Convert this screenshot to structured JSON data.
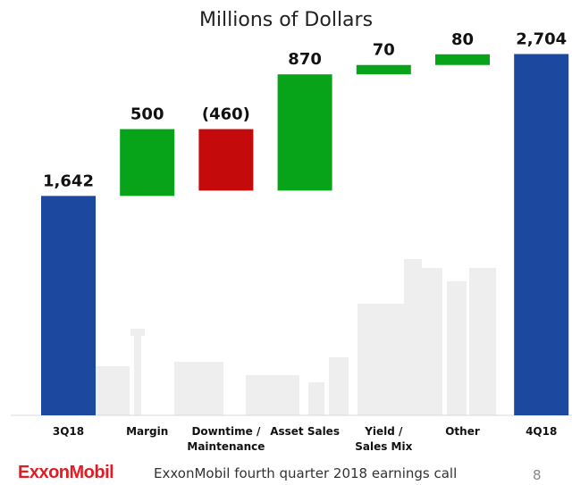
{
  "chart_data": {
    "type": "bar",
    "subtype": "waterfall",
    "title": "Millions of Dollars",
    "categories": [
      "3Q18",
      "Margin",
      "Downtime / Maintenance",
      "Asset Sales",
      "Yield / Sales Mix",
      "Other",
      "4Q18"
    ],
    "category_lines": [
      [
        "3Q18"
      ],
      [
        "Margin"
      ],
      [
        "Downtime /",
        "Maintenance"
      ],
      [
        "Asset Sales"
      ],
      [
        "Yield /",
        "Sales Mix"
      ],
      [
        "Other"
      ],
      [
        "4Q18"
      ]
    ],
    "values": [
      1642,
      500,
      -460,
      870,
      70,
      80,
      2704
    ],
    "value_labels": [
      "1,642",
      "500",
      "(460)",
      "870",
      "70",
      "80",
      "2,704"
    ],
    "kinds": [
      "total",
      "increase",
      "decrease",
      "increase",
      "increase",
      "increase",
      "total"
    ],
    "colors": {
      "total": "#1c48a0",
      "increase": "#07a319",
      "decrease": "#c40a0a"
    }
  },
  "footer": {
    "logo_text": "ExxonMobil",
    "caption": "ExxonMobil fourth quarter 2018 earnings call",
    "page_number": "8"
  }
}
